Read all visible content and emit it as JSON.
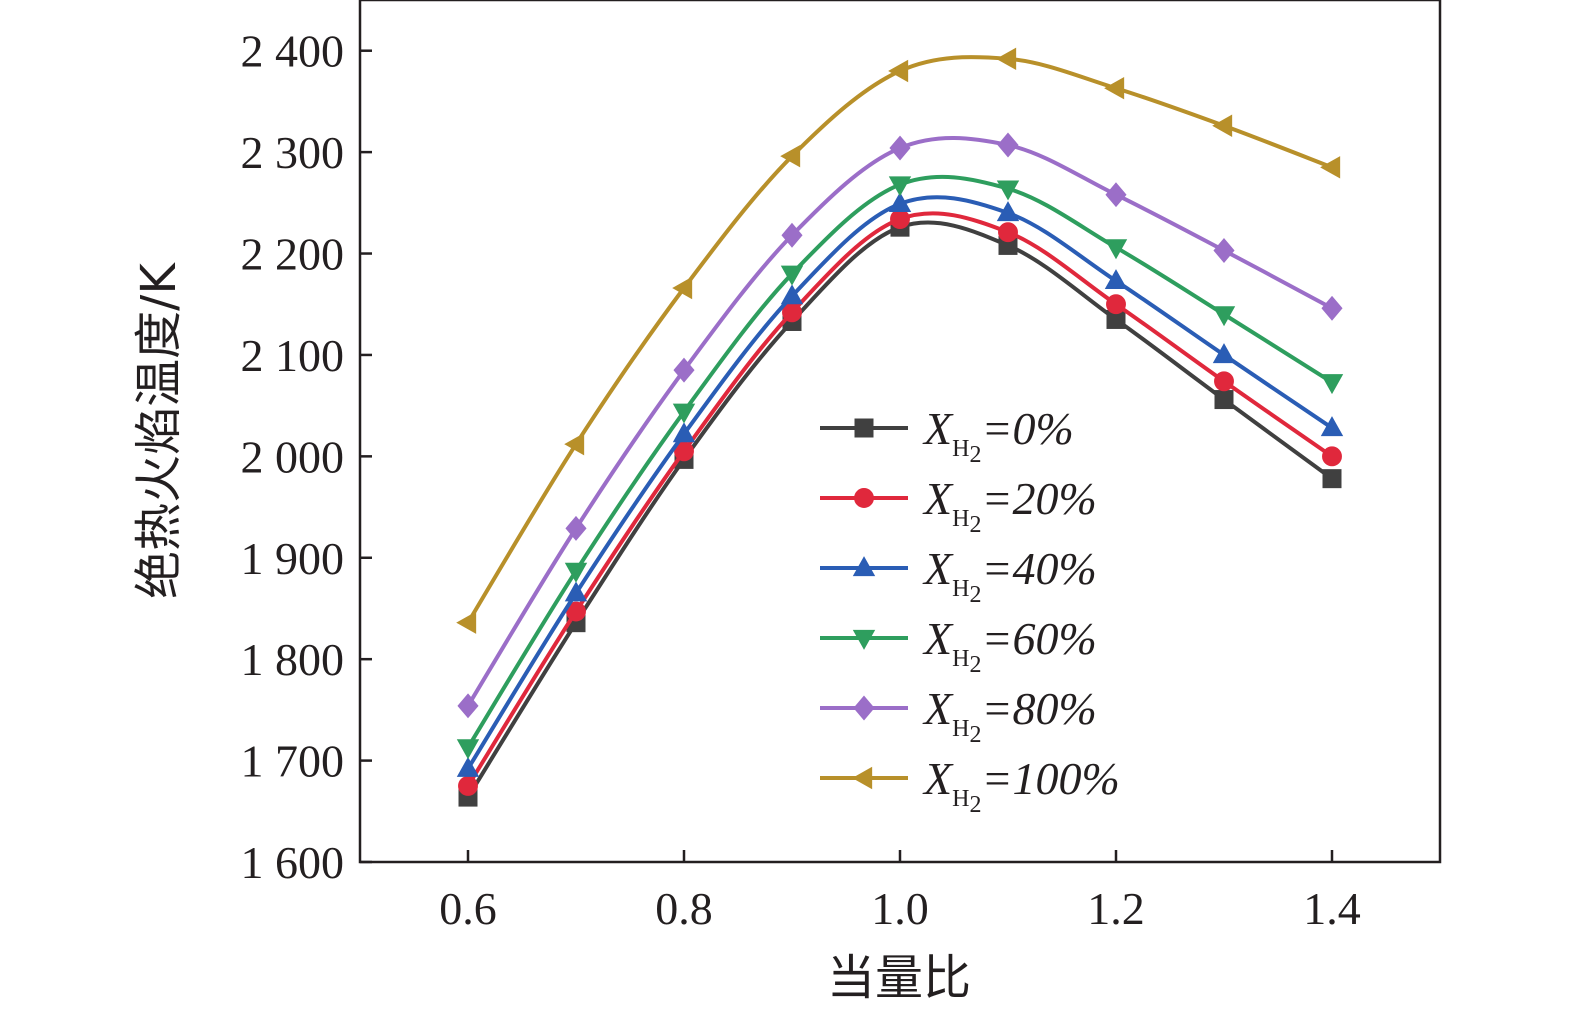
{
  "chart_data": {
    "type": "line",
    "title": "",
    "xlabel": "当量比",
    "ylabel": "绝热火焰温度/K",
    "x": [
      0.6,
      0.7,
      0.8,
      0.9,
      1.0,
      1.1,
      1.2,
      1.3,
      1.4
    ],
    "xlim": [
      0.5,
      1.5
    ],
    "ylim": [
      1600,
      2450
    ],
    "xticks": [
      "0.6",
      "0.8",
      "1.0",
      "1.2",
      "1.4"
    ],
    "yticks": [
      "1 600",
      "1 700",
      "1 800",
      "1 900",
      "2 000",
      "2 100",
      "2 200",
      "2 300",
      "2 400"
    ],
    "grid": false,
    "legend_position": "center-right",
    "legend_prefix": "X",
    "legend_subscript": "H",
    "legend_subscript_2": "2",
    "series": [
      {
        "name": "=0%",
        "color": "#404040",
        "marker": "square",
        "values": [
          1664,
          1836,
          1997,
          2133,
          2226,
          2208,
          2135,
          2056,
          1978
        ]
      },
      {
        "name": "=20%",
        "color": "#e0283c",
        "marker": "circle",
        "values": [
          1675,
          1847,
          2005,
          2142,
          2234,
          2221,
          2150,
          2074,
          2000
        ]
      },
      {
        "name": "=40%",
        "color": "#2a5db5",
        "marker": "triangle-up",
        "values": [
          1692,
          1865,
          2022,
          2158,
          2249,
          2240,
          2173,
          2100,
          2028
        ]
      },
      {
        "name": "=60%",
        "color": "#2e9e5e",
        "marker": "triangle-down",
        "values": [
          1713,
          1887,
          2044,
          2180,
          2268,
          2264,
          2206,
          2140,
          2073
        ]
      },
      {
        "name": "=80%",
        "color": "#9b6ec8",
        "marker": "diamond",
        "values": [
          1754,
          1929,
          2085,
          2218,
          2304,
          2307,
          2258,
          2203,
          2146
        ]
      },
      {
        "name": "=100%",
        "color": "#b8902a",
        "marker": "triangle-left",
        "values": [
          1836,
          2012,
          2166,
          2296,
          2380,
          2392,
          2363,
          2326,
          2285
        ]
      }
    ]
  }
}
